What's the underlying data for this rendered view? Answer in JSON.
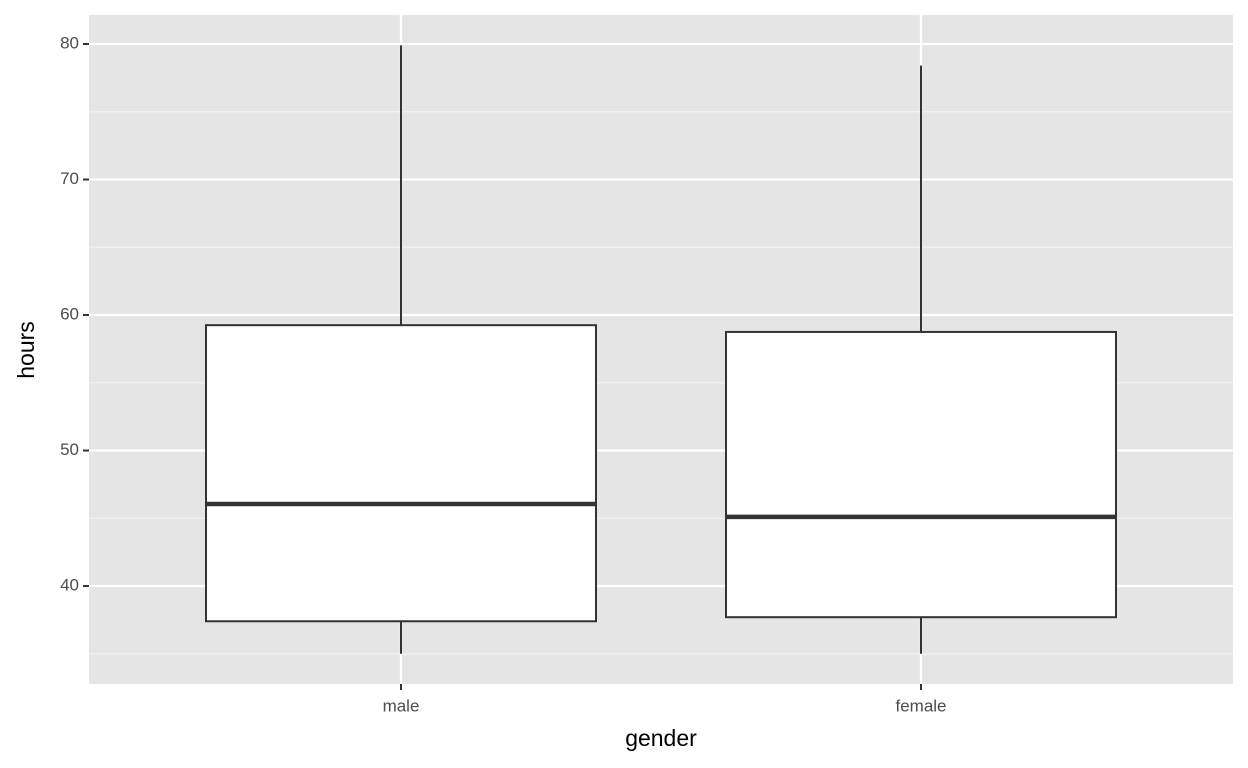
{
  "chart_data": {
    "type": "box",
    "x_label": "gender",
    "y_label": "hours",
    "categories": [
      "male",
      "female"
    ],
    "boxes": [
      {
        "min": 35,
        "q1": 37.4,
        "median": 46.05,
        "q3": 59.25,
        "max": 79.9
      },
      {
        "min": 35,
        "q1": 37.7,
        "median": 45.1,
        "q3": 58.75,
        "max": 78.4
      }
    ],
    "fill": "#ffffff",
    "stroke": "#333333",
    "ylim": [
      32.77,
      82.14
    ],
    "yticks": [
      40,
      50,
      60,
      70,
      80
    ],
    "minor_yticks": [
      35,
      45,
      55,
      65,
      75
    ],
    "grid": true
  }
}
